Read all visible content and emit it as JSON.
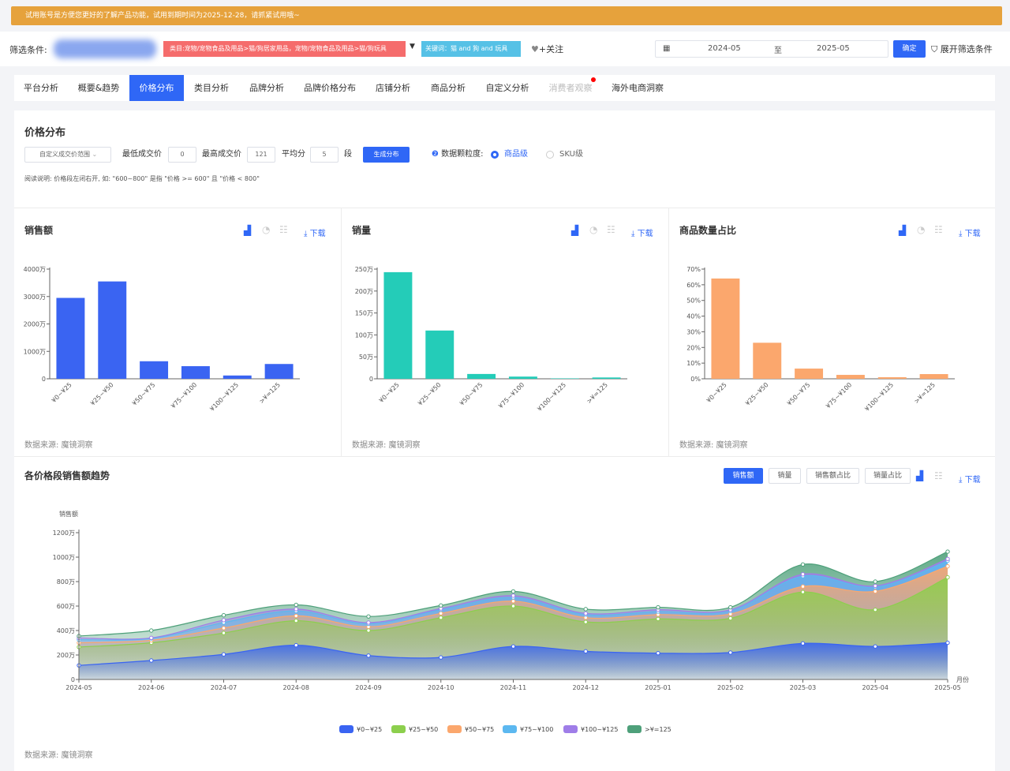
{
  "banner": {
    "text": "试用账号是方便您更好的了解产品功能，试用到期时间为2025-12-28，请抓紧试用哦~"
  },
  "filter": {
    "label": "筛选条件:",
    "category_tag": "类目:宠物/宠物食品及用品>猫/狗居家用品，宠物/宠物食品及用品>猫/狗玩具",
    "keyword_tag": "关键词：猫 and 狗 and 玩具",
    "follow_label": "+关注",
    "date_start": "2024-05",
    "date_to": "至",
    "date_end": "2025-05",
    "confirm_label": "确定",
    "expand_label": "展开筛选条件"
  },
  "tabs": [
    {
      "label": "平台分析"
    },
    {
      "label": "概要&趋势"
    },
    {
      "label": "价格分布"
    },
    {
      "label": "类目分析"
    },
    {
      "label": "品牌分析"
    },
    {
      "label": "品牌价格分布"
    },
    {
      "label": "店铺分析"
    },
    {
      "label": "商品分析"
    },
    {
      "label": "自定义分析"
    },
    {
      "label": "消费者观察"
    },
    {
      "label": "海外电商洞察"
    }
  ],
  "active_tab": "价格分布",
  "price_panel": {
    "title": "价格分布",
    "range_select": "自定义成交价范围",
    "min_label": "最低成交价",
    "min_value": "0",
    "max_label": "最高成交价",
    "max_value": "121",
    "avg_label": "平均分",
    "avg_value": "5",
    "seg_label": "段",
    "generate_label": "生成分布",
    "granularity_label": "数据颗粒度:",
    "option_item": "商品级",
    "option_sku": "SKU级",
    "note": "阅读说明: 价格段左闭右开, 如: \"600~800\" 是指 \"价格 >= 600\" 且 \"价格 < 800\""
  },
  "common": {
    "download": "下载",
    "source": "数据来源: 魔镜洞察"
  },
  "colors": {
    "accent": "#2f67f6",
    "sales": "#3a64f2",
    "volume": "#24ccb8",
    "share": "#fba76d"
  },
  "chart_data": [
    {
      "type": "bar",
      "title": "销售额",
      "categories": [
        "¥0~¥25",
        "¥25~¥50",
        "¥50~¥75",
        "¥75~¥100",
        "¥100~¥125",
        ">¥=125"
      ],
      "values": [
        2950,
        3550,
        640,
        460,
        120,
        540
      ],
      "ylim": [
        0,
        4000
      ],
      "yticks": [
        "0",
        "1000万",
        "2000万",
        "3000万",
        "4000万"
      ]
    },
    {
      "type": "bar",
      "title": "销量",
      "categories": [
        "¥0~¥25",
        "¥25~¥50",
        "¥50~¥75",
        "¥75~¥100",
        "¥100~¥125",
        ">¥=125"
      ],
      "values": [
        243,
        110,
        11,
        5,
        1,
        3
      ],
      "ylim": [
        0,
        250
      ],
      "yticks": [
        "0",
        "50万",
        "100万",
        "150万",
        "200万",
        "250万"
      ]
    },
    {
      "type": "bar",
      "title": "商品数量占比",
      "categories": [
        "¥0~¥25",
        "¥25~¥50",
        "¥50~¥75",
        "¥75~¥100",
        "¥100~¥125",
        ">¥=125"
      ],
      "values": [
        64,
        23,
        6.5,
        2.5,
        1,
        3
      ],
      "ylim": [
        0,
        70
      ],
      "yticks": [
        "0%",
        "10%",
        "20%",
        "30%",
        "40%",
        "50%",
        "60%",
        "70%"
      ]
    },
    {
      "type": "area",
      "title": "各价格段销售额趋势",
      "ylabel": "销售额",
      "xlabel": "月份",
      "x": [
        "2024-05",
        "2024-06",
        "2024-07",
        "2024-08",
        "2024-09",
        "2024-10",
        "2024-11",
        "2024-12",
        "2025-01",
        "2025-02",
        "2025-03",
        "2025-04",
        "2025-05"
      ],
      "ylim": [
        0,
        1200
      ],
      "yticks": [
        "0",
        "200万",
        "400万",
        "600万",
        "800万",
        "1000万",
        "1200万"
      ],
      "stacked": true,
      "legend": "bottom",
      "series": [
        {
          "name": "¥0~¥25",
          "color": "#3a64f2",
          "values": [
            115,
            155,
            205,
            280,
            195,
            180,
            270,
            230,
            215,
            220,
            295,
            270,
            300
          ]
        },
        {
          "name": "¥25~¥50",
          "color": "#8ccf4d",
          "values": [
            150,
            145,
            175,
            200,
            205,
            325,
            330,
            240,
            280,
            280,
            420,
            300,
            535
          ]
        },
        {
          "name": "¥50~¥75",
          "color": "#fba76d",
          "values": [
            35,
            20,
            40,
            40,
            30,
            35,
            40,
            35,
            35,
            35,
            45,
            150,
            90
          ]
        },
        {
          "name": "¥75~¥100",
          "color": "#5cb8f0",
          "values": [
            25,
            15,
            45,
            40,
            25,
            30,
            30,
            25,
            25,
            25,
            85,
            35,
            45
          ]
        },
        {
          "name": "¥100~¥125",
          "color": "#9f7de8",
          "values": [
            15,
            5,
            20,
            15,
            10,
            10,
            15,
            10,
            15,
            10,
            15,
            10,
            15
          ]
        },
        {
          "name": ">¥=125",
          "color": "#4ea07a",
          "values": [
            15,
            60,
            40,
            35,
            50,
            25,
            35,
            35,
            20,
            20,
            80,
            35,
            60
          ]
        }
      ]
    }
  ],
  "trend_buttons": [
    {
      "label": "销售额"
    },
    {
      "label": "销量"
    },
    {
      "label": "销售额占比"
    },
    {
      "label": "销量占比"
    }
  ]
}
